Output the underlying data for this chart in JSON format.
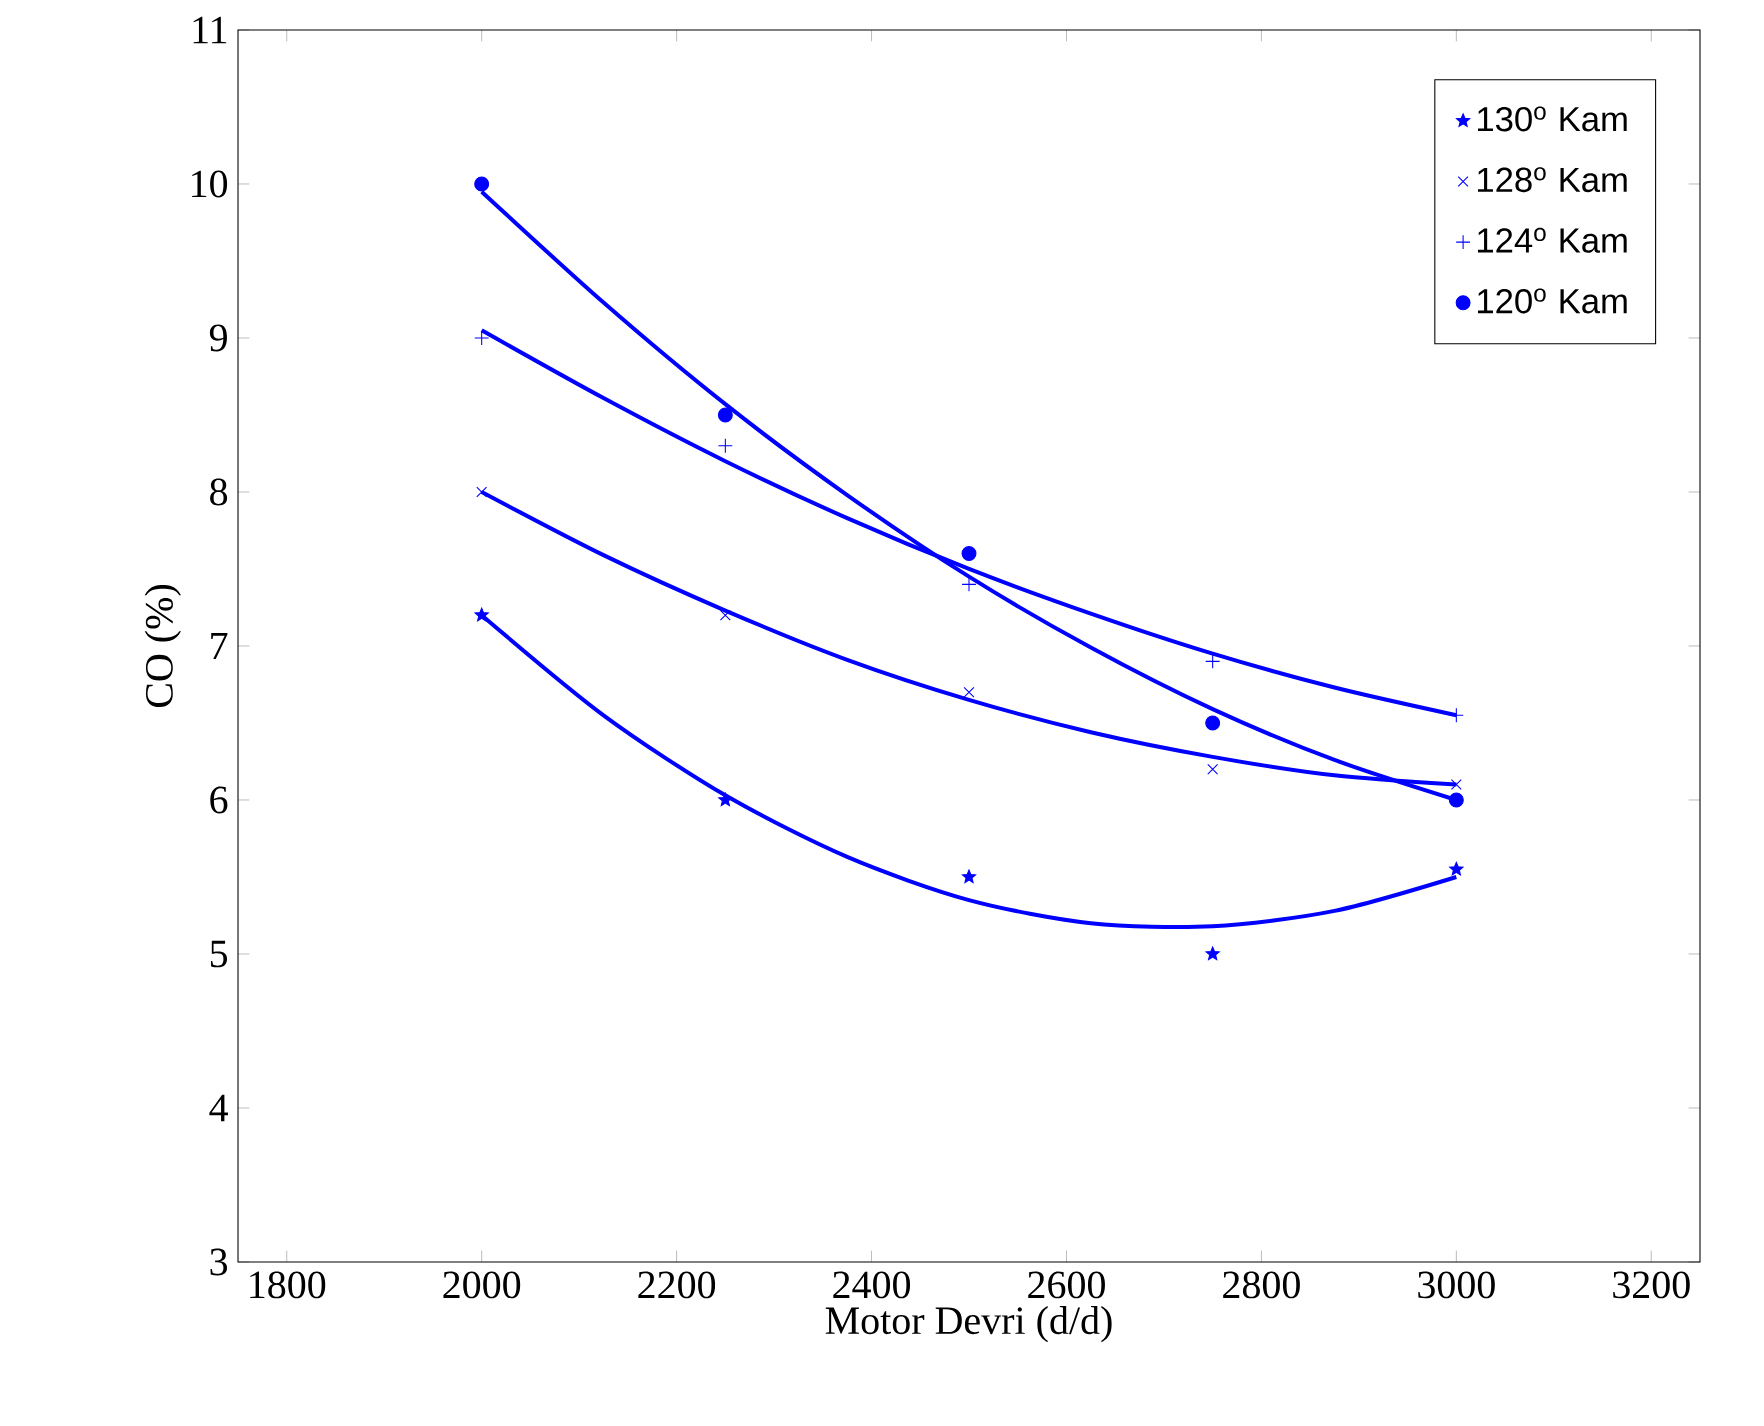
{
  "chart_data": {
    "type": "scatter",
    "xlabel": "Motor Devri (d/d)",
    "ylabel": "CO (%)",
    "x": [
      2000,
      2250,
      2500,
      2750,
      3000
    ],
    "xlim": [
      1750,
      3250
    ],
    "ylim": [
      3,
      11
    ],
    "xticks": [
      1800,
      2000,
      2200,
      2400,
      2600,
      2800,
      3000,
      3200
    ],
    "yticks": [
      3,
      4,
      5,
      6,
      7,
      8,
      9,
      10,
      11
    ],
    "legend": "top right",
    "grid": false,
    "series": [
      {
        "name": "130$^{o}$ Kam",
        "color": "#0000ff",
        "marker": "star",
        "values": [
          7.2,
          6.0,
          5.5,
          5.0,
          5.55
        ]
      },
      {
        "name": "128$^{o}$ Kam",
        "color": "#0000ff",
        "marker": "cross",
        "values": [
          8.0,
          7.2,
          6.7,
          6.2,
          6.1
        ]
      },
      {
        "name": "124$^{o}$ Kam",
        "color": "#0000ff",
        "marker": "plus",
        "values": [
          9.0,
          8.3,
          7.4,
          6.9,
          6.55
        ]
      },
      {
        "name": "120$^{o}$ Kam",
        "color": "#0000ff",
        "marker": "circle",
        "values": [
          10.0,
          8.5,
          7.6,
          6.5,
          6.0
        ]
      },
      {
        "type": "line",
        "color": "#0000ff",
        "marker": "none",
        "x": [
          2000,
          2125,
          2250,
          2375,
          2500,
          2625,
          2750,
          2875,
          3000
        ],
        "values": [
          7.2,
          6.55,
          6.03,
          5.63,
          5.35,
          5.2,
          5.18,
          5.28,
          5.5
        ]
      },
      {
        "type": "line",
        "color": "#0000ff",
        "marker": "none",
        "x": [
          2000,
          2125,
          2250,
          2375,
          2500,
          2625,
          2750,
          2875,
          3000
        ],
        "values": [
          8.0,
          7.59,
          7.23,
          6.91,
          6.65,
          6.44,
          6.28,
          6.16,
          6.1
        ]
      },
      {
        "type": "line",
        "color": "#0000ff",
        "marker": "none",
        "x": [
          2000,
          2125,
          2250,
          2375,
          2500,
          2625,
          2750,
          2875,
          3000
        ],
        "values": [
          9.05,
          8.61,
          8.2,
          7.83,
          7.5,
          7.21,
          6.95,
          6.73,
          6.55
        ]
      },
      {
        "type": "line",
        "color": "#0000ff",
        "marker": "none",
        "x": [
          2000,
          2125,
          2250,
          2375,
          2500,
          2625,
          2750,
          2875,
          3000
        ],
        "values": [
          9.95,
          9.23,
          8.57,
          7.98,
          7.45,
          6.99,
          6.59,
          6.26,
          6.0
        ]
      }
    ]
  }
}
